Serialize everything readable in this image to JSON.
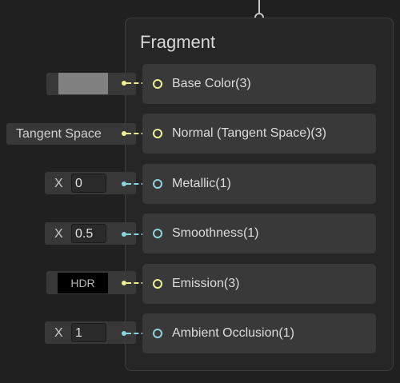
{
  "node": {
    "title": "Fragment"
  },
  "slots": [
    {
      "label": "Base Color(3)",
      "port_color": "yellow"
    },
    {
      "label": "Normal (Tangent Space)(3)",
      "port_color": "yellow"
    },
    {
      "label": "Metallic(1)",
      "port_color": "cyan"
    },
    {
      "label": "Smoothness(1)",
      "port_color": "cyan"
    },
    {
      "label": "Emission(3)",
      "port_color": "yellow"
    },
    {
      "label": "Ambient Occlusion(1)",
      "port_color": "cyan"
    }
  ],
  "inputs": {
    "base_color": {
      "swatch_color": "#808080"
    },
    "normal": {
      "space": "Tangent Space"
    },
    "metallic": {
      "axis": "X",
      "value": "0"
    },
    "smoothness": {
      "axis": "X",
      "value": "0.5"
    },
    "emission": {
      "mode": "HDR"
    },
    "ambient_occlusion": {
      "axis": "X",
      "value": "1"
    }
  },
  "colors": {
    "vector3_port": "#f0f096",
    "float_port": "#8ed4de",
    "node_background": "#262626",
    "slot_background": "#393939"
  }
}
